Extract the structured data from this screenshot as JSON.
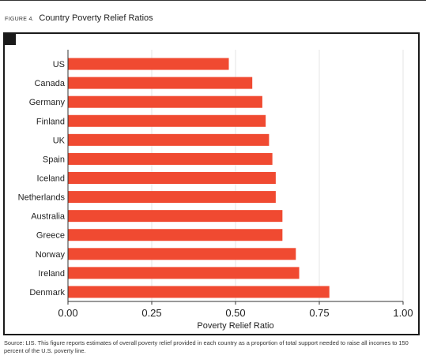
{
  "figure": {
    "label": "Figure 4.",
    "title": "Country Poverty Relief Ratios"
  },
  "chart_data": {
    "type": "bar",
    "orientation": "horizontal",
    "categories": [
      "US",
      "Canada",
      "Germany",
      "Finland",
      "UK",
      "Spain",
      "Iceland",
      "Netherlands",
      "Australia",
      "Greece",
      "Norway",
      "Ireland",
      "Denmark"
    ],
    "values": [
      0.48,
      0.55,
      0.58,
      0.59,
      0.6,
      0.61,
      0.62,
      0.62,
      0.64,
      0.64,
      0.68,
      0.69,
      0.78
    ],
    "xlabel": "Poverty Relief Ratio",
    "xlim": [
      0,
      1
    ],
    "xticks": [
      "0.00",
      "0.25",
      "0.50",
      "0.75",
      "1.00"
    ],
    "xtick_values": [
      0,
      0.25,
      0.5,
      0.75,
      1.0
    ],
    "grid": "vertical",
    "bar_color": "#f04a31",
    "grid_color": "#e6e6e6",
    "axis_color": "#333333"
  },
  "source_note": "Source: LIS. This figure reports estimates of overall poverty relief provided in each country as a proportion of total support needed to raise all incomes to 150 percent of the U.S. poverty line."
}
